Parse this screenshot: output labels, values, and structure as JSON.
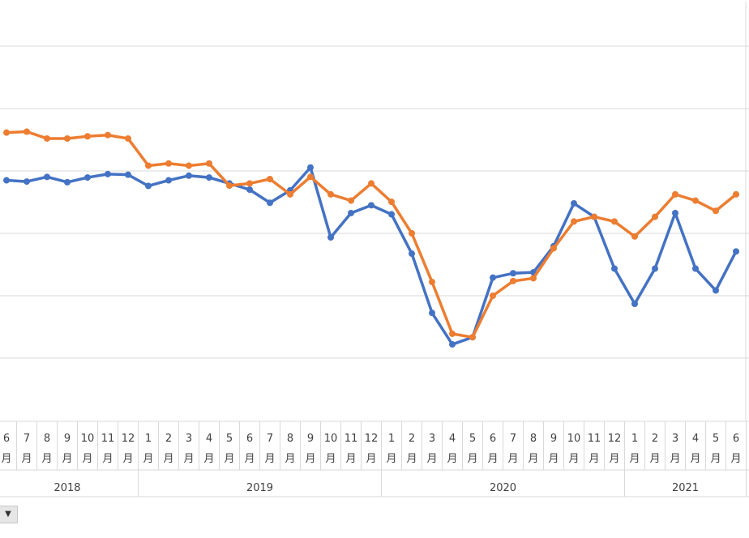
{
  "chart_data": {
    "type": "line",
    "categories": [
      {
        "year": "2018",
        "month": "6",
        "unit": "月"
      },
      {
        "year": "2018",
        "month": "7",
        "unit": "月"
      },
      {
        "year": "2018",
        "month": "8",
        "unit": "月"
      },
      {
        "year": "2018",
        "month": "9",
        "unit": "月"
      },
      {
        "year": "2018",
        "month": "10",
        "unit": "月"
      },
      {
        "year": "2018",
        "month": "11",
        "unit": "月"
      },
      {
        "year": "2018",
        "month": "12",
        "unit": "月"
      },
      {
        "year": "2019",
        "month": "1",
        "unit": "月"
      },
      {
        "year": "2019",
        "month": "2",
        "unit": "月"
      },
      {
        "year": "2019",
        "month": "3",
        "unit": "月"
      },
      {
        "year": "2019",
        "month": "4",
        "unit": "月"
      },
      {
        "year": "2019",
        "month": "5",
        "unit": "月"
      },
      {
        "year": "2019",
        "month": "6",
        "unit": "月"
      },
      {
        "year": "2019",
        "month": "7",
        "unit": "月"
      },
      {
        "year": "2019",
        "month": "8",
        "unit": "月"
      },
      {
        "year": "2019",
        "month": "9",
        "unit": "月"
      },
      {
        "year": "2019",
        "month": "10",
        "unit": "月"
      },
      {
        "year": "2019",
        "month": "11",
        "unit": "月"
      },
      {
        "year": "2019",
        "month": "12",
        "unit": "月"
      },
      {
        "year": "2020",
        "month": "1",
        "unit": "月"
      },
      {
        "year": "2020",
        "month": "2",
        "unit": "月"
      },
      {
        "year": "2020",
        "month": "3",
        "unit": "月"
      },
      {
        "year": "2020",
        "month": "4",
        "unit": "月"
      },
      {
        "year": "2020",
        "month": "5",
        "unit": "月"
      },
      {
        "year": "2020",
        "month": "6",
        "unit": "月"
      },
      {
        "year": "2020",
        "month": "7",
        "unit": "月"
      },
      {
        "year": "2020",
        "month": "8",
        "unit": "月"
      },
      {
        "year": "2020",
        "month": "9",
        "unit": "月"
      },
      {
        "year": "2020",
        "month": "10",
        "unit": "月"
      },
      {
        "year": "2020",
        "month": "11",
        "unit": "月"
      },
      {
        "year": "2020",
        "month": "12",
        "unit": "月"
      },
      {
        "year": "2021",
        "month": "1",
        "unit": "月"
      },
      {
        "year": "2021",
        "month": "2",
        "unit": "月"
      },
      {
        "year": "2021",
        "month": "3",
        "unit": "月"
      },
      {
        "year": "2021",
        "month": "4",
        "unit": "月"
      },
      {
        "year": "2021",
        "month": "5",
        "unit": "月"
      },
      {
        "year": "2021",
        "month": "6",
        "unit": "月"
      }
    ],
    "years": [
      "2018",
      "2019",
      "2020",
      "2021"
    ],
    "series": [
      {
        "color": "#4472C4",
        "values": [
          3.7,
          3.66,
          3.81,
          3.64,
          3.79,
          3.9,
          3.88,
          3.52,
          3.7,
          3.85,
          3.79,
          3.6,
          3.4,
          2.98,
          3.38,
          4.11,
          1.87,
          2.65,
          2.9,
          2.61,
          1.35,
          -0.55,
          -1.56,
          -1.33,
          0.58,
          0.72,
          0.75,
          1.59,
          2.96,
          2.53,
          0.87,
          -0.26,
          0.87,
          2.65,
          0.87,
          0.17,
          1.42
        ]
      },
      {
        "color": "#ED7D31",
        "values": [
          5.23,
          5.26,
          5.04,
          5.04,
          5.11,
          5.15,
          5.04,
          4.17,
          4.24,
          4.17,
          4.24,
          3.53,
          3.6,
          3.74,
          3.25,
          3.81,
          3.25,
          3.05,
          3.6,
          3.01,
          2.0,
          0.44,
          -1.22,
          -1.33,
          0.0,
          0.47,
          0.56,
          1.52,
          2.38,
          2.53,
          2.38,
          1.9,
          2.53,
          3.25,
          3.05,
          2.72,
          3.25
        ]
      }
    ],
    "grid": true,
    "ylim": [
      -2,
      8
    ],
    "legend": "none"
  },
  "ui": {
    "dropdown_arrow": "▼"
  }
}
